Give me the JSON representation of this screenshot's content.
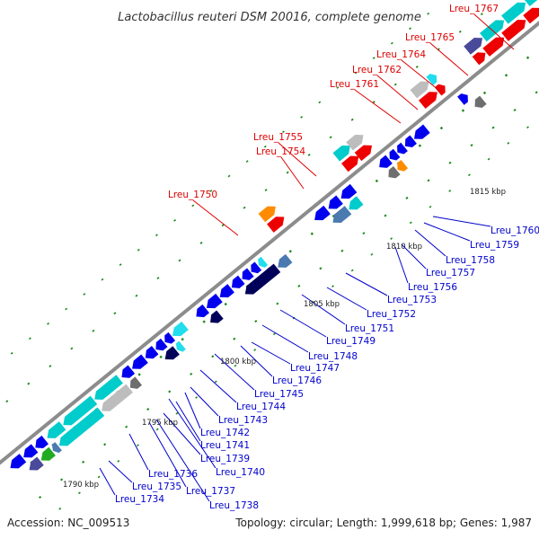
{
  "title": "Lactobacillus reuteri DSM 20016, complete genome",
  "footer": {
    "accession": "Accession: NC_009513",
    "topology": "Topology: circular; Length: 1,999,618 bp; Genes: 1,987"
  },
  "colors": {
    "backbone": "#8c8c8c",
    "tick": "#1a8a1a",
    "forward_label": "#dd0000",
    "reverse_label": "#0000cc",
    "feature_red": "#ee0000",
    "feature_orange": "#ff8c00",
    "feature_cyan": "#00cccc",
    "feature_lightcyan": "#22ddee",
    "feature_blue": "#0000ee",
    "feature_navy": "#00005a",
    "feature_slate": "#4a4a9a",
    "feature_steel": "#4a7ab0",
    "feature_gray": "#bdbdbd",
    "feature_darkgray": "#6e6e6e",
    "feature_green": "#22aa22"
  },
  "scale_labels": [
    "1790 kbp",
    "1795 kbp",
    "1800 kbp",
    "1805 kbp",
    "1810 kbp",
    "1815 kbp"
  ],
  "forward_genes": [
    "Lreu_1750",
    "Lreu_1754",
    "Lreu_1755",
    "Lreu_1761",
    "Lreu_1762",
    "Lreu_1764",
    "Lreu_1765",
    "Lreu_1767"
  ],
  "reverse_genes": [
    "Lreu_1734",
    "Lreu_1735",
    "Lreu_1736",
    "Lreu_1737",
    "Lreu_1738",
    "Lreu_1739",
    "Lreu_1740",
    "Lreu_1741",
    "Lreu_1742",
    "Lreu_1743",
    "Lreu_1744",
    "Lreu_1745",
    "Lreu_1746",
    "Lreu_1747",
    "Lreu_1748",
    "Lreu_1749",
    "Lreu_1751",
    "Lreu_1752",
    "Lreu_1753",
    "Lreu_1756",
    "Lreu_1757",
    "Lreu_1758",
    "Lreu_1759",
    "Lreu_1760"
  ]
}
